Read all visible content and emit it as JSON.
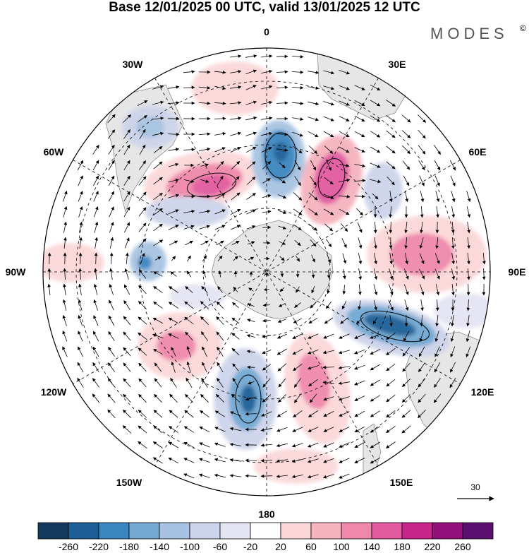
{
  "title": "Base 12/01/2025 00 UTC, valid 13/01/2025 12 UTC",
  "brand": {
    "name": "MODES",
    "mark": "©"
  },
  "longitude_labels": {
    "top": "0",
    "top_right": "30E",
    "right_upper": "60E",
    "right": "90E",
    "right_lower": "120E",
    "bottom_right": "150E",
    "bottom": "180",
    "bottom_left": "150W",
    "left_lower": "120W",
    "left": "90W",
    "left_upper": "60W",
    "top_left": "30W"
  },
  "reference_vector": {
    "value": "30",
    "icon": "arrow-right-icon"
  },
  "colorbar": {
    "ticks": [
      "-260",
      "-220",
      "-180",
      "-140",
      "-100",
      "-60",
      "-20",
      "20",
      "60",
      "100",
      "140",
      "180",
      "220",
      "260"
    ],
    "colors": [
      "#143a5e",
      "#1d5e96",
      "#3a86c0",
      "#72a8d2",
      "#a7c3e1",
      "#cdd3ea",
      "#e4e4f3",
      "#ffffff",
      "#fbd7d9",
      "#f5b3be",
      "#ef88aa",
      "#e15aa0",
      "#c7258a",
      "#93107a",
      "#5b0f6e"
    ]
  },
  "colors": {
    "land": "#e6e6e6",
    "coast": "#8c8c8c",
    "arrow": "#000000",
    "grid": "#000000"
  }
}
